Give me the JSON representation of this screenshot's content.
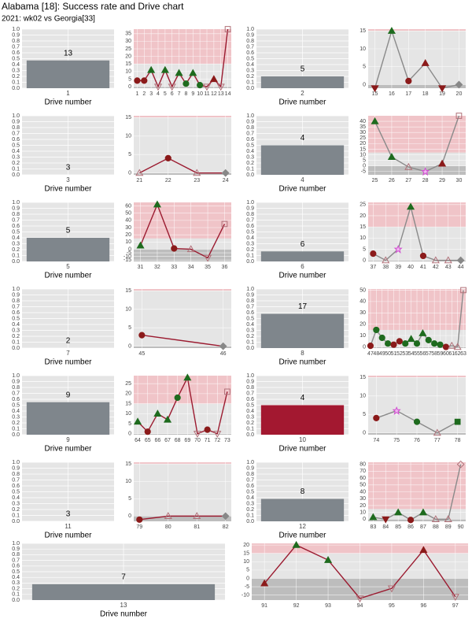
{
  "title": "Alabama [18]: Success rate and Drive chart",
  "subtitle": "2021: wk02 vs Georgia[33]",
  "bar_axis": {
    "ylim": [
      0,
      1
    ],
    "yticks": [
      {
        "value": 0,
        "label": "0.0"
      },
      {
        "value": 0.1,
        "label": "0.1"
      },
      {
        "value": 0.2,
        "label": "0.2"
      },
      {
        "value": 0.3,
        "label": "0.3"
      },
      {
        "value": 0.4,
        "label": "0.4"
      },
      {
        "value": 0.5,
        "label": "0.5"
      },
      {
        "value": 0.6,
        "label": "0.6"
      },
      {
        "value": 0.7,
        "label": "0.7"
      },
      {
        "value": 0.8,
        "label": "0.8"
      },
      {
        "value": 0.9,
        "label": "0.9"
      },
      {
        "value": 1,
        "label": "1.0"
      }
    ]
  },
  "chart_data": [
    {
      "type": "bar",
      "drive": 1,
      "value": 0.47,
      "bar_label": 13,
      "color": "#7f868c",
      "xlabel": "Drive number"
    },
    {
      "type": "line",
      "x": [
        1,
        2,
        3,
        4,
        5,
        6,
        7,
        8,
        9,
        10,
        11,
        12,
        13,
        14
      ],
      "values": [
        4,
        4,
        11,
        0,
        11,
        0,
        9,
        2,
        9,
        1,
        0,
        5,
        0,
        38
      ],
      "markers": [
        "circle-red",
        "circle-red",
        "up-green",
        "down-open",
        "up-green",
        "down-open",
        "up-green",
        "circle-green",
        "up-green",
        "circle-green",
        "down-open",
        "up-red",
        "down-open",
        "square-open"
      ],
      "line_color": "#9b1b30",
      "xlim": [
        0.5,
        14.5
      ],
      "ylim": [
        -1,
        38
      ],
      "yticks": [
        0,
        5,
        10,
        15,
        20,
        25,
        30,
        35
      ],
      "shade_high": [
        15,
        38
      ],
      "shade_low": [
        -1,
        0
      ]
    },
    {
      "type": "bar",
      "drive": 2,
      "value": 0.2,
      "bar_label": 5,
      "color": "#7f868c",
      "xlabel": "Drive number"
    },
    {
      "type": "line",
      "x": [
        15,
        16,
        17,
        18,
        19,
        20
      ],
      "values": [
        -1,
        15,
        1,
        6,
        -1,
        0
      ],
      "markers": [
        "down-red",
        "up-green",
        "circle-red",
        "up-red",
        "down-red",
        "diamond-grey"
      ],
      "line_color": "#8a8a8a",
      "xlim": [
        14.6,
        20.4
      ],
      "ylim": [
        -1,
        15.5
      ],
      "yticks": [
        0,
        5,
        10,
        15
      ],
      "shade_high": [
        15,
        15.5
      ],
      "shade_low": [
        -1,
        0
      ]
    },
    {
      "type": "bar",
      "drive": 3,
      "value": 0,
      "bar_label": 3,
      "color": "#7f868c",
      "xlabel": "Drive number"
    },
    {
      "type": "line",
      "x": [
        21,
        22,
        23,
        24
      ],
      "values": [
        0,
        4,
        0,
        0
      ],
      "markers": [
        "up-open",
        "circle-red",
        "up-open",
        "diamond-grey"
      ],
      "line_color": "#9b1b30",
      "xlim": [
        20.8,
        24.2
      ],
      "ylim": [
        -0.5,
        15.5
      ],
      "yticks": [
        0,
        5,
        10,
        15
      ],
      "shade_high": [
        15,
        15.5
      ],
      "shade_low": [
        -0.5,
        0
      ]
    },
    {
      "type": "bar",
      "drive": 4,
      "value": 0.5,
      "bar_label": 4,
      "color": "#7f868c",
      "xlabel": "Drive number"
    },
    {
      "type": "line",
      "x": [
        25,
        26,
        27,
        28,
        29,
        30
      ],
      "values": [
        40,
        8,
        -1,
        -5,
        2,
        45
      ],
      "markers": [
        "up-green",
        "up-green",
        "up-open",
        "star-pink",
        "up-red",
        "square-open"
      ],
      "line_color": "#8a8a8a",
      "xlim": [
        24.6,
        30.4
      ],
      "ylim": [
        -8,
        45
      ],
      "yticks": [
        -5,
        0,
        5,
        10,
        15,
        20,
        25,
        30,
        35,
        40
      ],
      "shade_high": [
        12,
        45
      ],
      "shade_low": [
        -8,
        0
      ]
    },
    {
      "type": "bar",
      "drive": 5,
      "value": 0.4,
      "bar_label": 5,
      "color": "#7f868c",
      "xlabel": "Drive number"
    },
    {
      "type": "line",
      "x": [
        31,
        32,
        33,
        34,
        35,
        36
      ],
      "values": [
        5,
        62,
        1,
        0,
        -12,
        35
      ],
      "markers": [
        "up-green",
        "up-green",
        "circle-red",
        "up-open",
        "down-open",
        "square-open"
      ],
      "line_color": "#9b1b30",
      "xlim": [
        30.6,
        36.4
      ],
      "ylim": [
        -17,
        65
      ],
      "yticks": [
        -15,
        -10,
        -5,
        0,
        10,
        20,
        30,
        40,
        50,
        60
      ],
      "shade_high": [
        15,
        65
      ],
      "shade_low": [
        -17,
        0
      ]
    },
    {
      "type": "bar",
      "drive": 6,
      "value": 0.17,
      "bar_label": 6,
      "color": "#7f868c",
      "xlabel": "Drive number"
    },
    {
      "type": "line",
      "x": [
        37,
        38,
        39,
        40,
        41,
        42,
        43,
        44
      ],
      "values": [
        3,
        0,
        5,
        24,
        2,
        0,
        0,
        0
      ],
      "markers": [
        "circle-red",
        "up-open",
        "star-pink",
        "up-green",
        "circle-red",
        "up-open",
        "up-open",
        "diamond-grey"
      ],
      "line_color": "#8a8a8a",
      "xlim": [
        36.6,
        44.4
      ],
      "ylim": [
        -0.5,
        26
      ],
      "yticks": [
        0,
        5,
        10,
        15,
        20,
        25
      ],
      "shade_high": [
        15,
        26
      ],
      "shade_low": [
        -0.5,
        0
      ]
    },
    {
      "type": "bar",
      "drive": 7,
      "value": 0,
      "bar_label": 2,
      "color": "#7f868c",
      "xlabel": "Drive number"
    },
    {
      "type": "line",
      "x": [
        45,
        46
      ],
      "values": [
        3,
        0
      ],
      "markers": [
        "circle-red",
        "diamond-grey"
      ],
      "line_color": "#9b1b30",
      "xlim": [
        44.9,
        46.1
      ],
      "ylim": [
        -0.5,
        15.5
      ],
      "yticks": [
        0,
        5,
        10,
        15
      ],
      "shade_high": [
        15,
        15.5
      ],
      "shade_low": [
        -0.5,
        0
      ]
    },
    {
      "type": "bar",
      "drive": 8,
      "value": 0.58,
      "bar_label": 17,
      "color": "#7f868c",
      "xlabel": "Drive number"
    },
    {
      "type": "line",
      "x": [
        47,
        48,
        49,
        50,
        51,
        52,
        53,
        54,
        55,
        56,
        57,
        58,
        59,
        60,
        61,
        62,
        63
      ],
      "values": [
        1,
        15,
        8,
        3,
        2,
        5,
        3,
        7,
        3,
        12,
        6,
        3,
        2,
        0,
        1,
        0,
        50
      ],
      "markers": [
        "circle-red",
        "circle-green",
        "circle-green",
        "circle-green",
        "circle-red",
        "circle-red",
        "circle-green",
        "up-green",
        "circle-green",
        "up-green",
        "circle-green",
        "circle-green",
        "circle-green",
        "circle-red",
        "up-open",
        "up-open",
        "square-open"
      ],
      "line_color": "#8a8a8a",
      "xlim": [
        46.6,
        63.4
      ],
      "ylim": [
        -1,
        51
      ],
      "yticks": [
        0,
        10,
        20,
        30,
        40,
        50
      ],
      "shade_high": [
        15,
        51
      ],
      "shade_low": [
        -1,
        0
      ]
    },
    {
      "type": "bar",
      "drive": 9,
      "value": 0.55,
      "bar_label": 9,
      "color": "#7f868c",
      "xlabel": "Drive number"
    },
    {
      "type": "line",
      "x": [
        64,
        65,
        66,
        67,
        68,
        69,
        70,
        71,
        72,
        73
      ],
      "values": [
        6,
        1,
        10,
        7,
        18,
        28,
        0,
        2,
        0,
        21
      ],
      "markers": [
        "up-green",
        "circle-red",
        "up-green",
        "up-green",
        "circle-green",
        "up-green",
        "down-open",
        "circle-red",
        "down-open",
        "square-open"
      ],
      "line_color": "#9b1b30",
      "xlim": [
        63.6,
        73.4
      ],
      "ylim": [
        -0.5,
        29
      ],
      "yticks": [
        0,
        5,
        10,
        15,
        20,
        25
      ],
      "shade_high": [
        15,
        29
      ],
      "shade_low": [
        -0.5,
        0
      ]
    },
    {
      "type": "bar",
      "drive": 10,
      "value": 0.5,
      "bar_label": 4,
      "color": "#a31830",
      "xlabel": "Drive number"
    },
    {
      "type": "line",
      "x": [
        74,
        75,
        76,
        77,
        78
      ],
      "values": [
        4,
        6,
        3,
        0,
        3
      ],
      "markers": [
        "circle-red",
        "star-pink",
        "circle-green",
        "up-open",
        "square-green"
      ],
      "line_color": "#8a8a8a",
      "xlim": [
        73.6,
        78.4
      ],
      "ylim": [
        -0.5,
        15.5
      ],
      "yticks": [
        0,
        5,
        10,
        15
      ],
      "shade_high": [
        15,
        15.5
      ],
      "shade_low": [
        -0.5,
        0
      ]
    },
    {
      "type": "bar",
      "drive": 11,
      "value": 0,
      "bar_label": 3,
      "color": "#7f868c",
      "xlabel": "Drive number"
    },
    {
      "type": "line",
      "x": [
        79,
        80,
        81,
        82
      ],
      "values": [
        -1,
        0,
        0,
        0
      ],
      "markers": [
        "circle-red",
        "up-open",
        "up-open",
        "diamond-grey"
      ],
      "line_color": "#9b1b30",
      "xlim": [
        78.8,
        82.2
      ],
      "ylim": [
        -1.5,
        15.5
      ],
      "yticks": [
        0,
        5,
        10,
        15
      ],
      "shade_high": [
        15,
        15.5
      ],
      "shade_low": [
        -1.5,
        0
      ]
    },
    {
      "type": "bar",
      "drive": 12,
      "value": 0.38,
      "bar_label": 8,
      "color": "#7f868c",
      "xlabel": "Drive number"
    },
    {
      "type": "line",
      "x": [
        83,
        84,
        85,
        86,
        87,
        88,
        89,
        90
      ],
      "values": [
        3,
        0,
        10,
        -1,
        10,
        0,
        0,
        80
      ],
      "markers": [
        "up-green",
        "down-red",
        "up-green",
        "circle-red",
        "up-green",
        "up-open",
        "up-open",
        "diamond-open"
      ],
      "line_color": "#8a8a8a",
      "xlim": [
        82.6,
        90.4
      ],
      "ylim": [
        -3,
        83
      ],
      "yticks": [
        0,
        10,
        20,
        30,
        40,
        50,
        60,
        70,
        80
      ],
      "shade_high": [
        15,
        83
      ],
      "shade_low": [
        -3,
        0
      ]
    },
    {
      "type": "bar",
      "drive": 13,
      "value": 0.28,
      "bar_label": 7,
      "color": "#7f868c",
      "xlabel": "Drive number"
    },
    {
      "type": "line",
      "x": [
        91,
        92,
        93,
        94,
        95,
        96,
        97
      ],
      "values": [
        -3,
        20,
        11,
        -12,
        -6,
        17,
        -11
      ],
      "markers": [
        "up-red",
        "up-green",
        "up-green",
        "down-open",
        "down-open",
        "up-red",
        "down-open"
      ],
      "line_color": "#9b1b30",
      "xlim": [
        90.6,
        97.4
      ],
      "ylim": [
        -13,
        21
      ],
      "yticks": [
        -10,
        -5,
        0,
        5,
        10,
        15,
        20
      ],
      "shade_high": [
        15,
        21
      ],
      "shade_low": [
        -13,
        0
      ]
    }
  ]
}
